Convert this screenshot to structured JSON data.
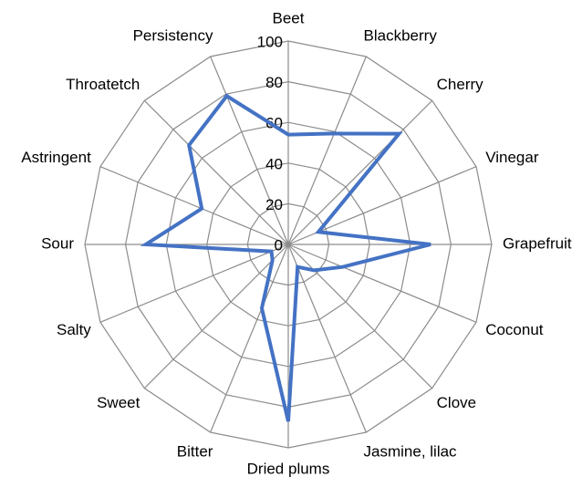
{
  "chart_data": {
    "type": "radar",
    "categories": [
      "Beet",
      "Blackberry",
      "Cherry",
      "Vinegar",
      "Grapefruit",
      "Coconut",
      "Clove",
      "Jasmine, lilac",
      "Dried plums",
      "Bitter",
      "Sweet",
      "Salty",
      "Sour",
      "Astringent",
      "Throatetch",
      "Persistency"
    ],
    "values": [
      54,
      59,
      77,
      16,
      70,
      29,
      18,
      12,
      87,
      34,
      11,
      9,
      70,
      46,
      69,
      79
    ],
    "color": "#4472c4",
    "ylim": [
      0,
      100
    ],
    "yticks": [
      0,
      20,
      40,
      60,
      80,
      100
    ],
    "grid": true
  }
}
